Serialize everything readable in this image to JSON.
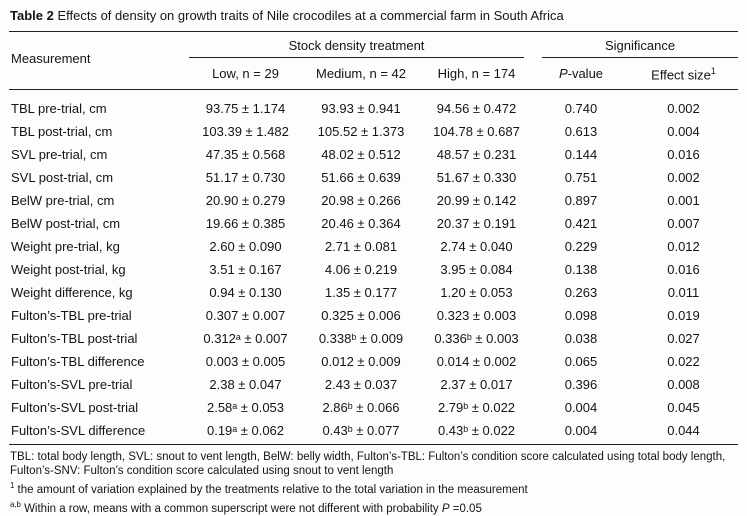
{
  "title": {
    "label": "Table 2",
    "text": " Effects of density on growth traits of Nile crocodiles at a commercial farm in South Africa"
  },
  "table": {
    "headers": {
      "measurement": "Measurement",
      "stock_density_group": "Stock density treatment",
      "significance_group": "Significance",
      "low": "Low, n = 29",
      "medium": "Medium, n = 42",
      "high": "High, n = 174",
      "p_value": {
        "p": "P",
        "rest": "-value"
      },
      "effect_size": {
        "text": "Effect size",
        "sup": "1"
      }
    },
    "rows": [
      {
        "measurement": "TBL pre-trial, cm",
        "low": "93.75 ± 1.174",
        "medium": "93.93 ± 0.941",
        "high": "94.56 ± 0.472",
        "p_value": "0.740",
        "effect_size": "0.002"
      },
      {
        "measurement": "TBL post-trial, cm",
        "low": "103.39 ± 1.482",
        "medium": "105.52 ± 1.373",
        "high": "104.78 ± 0.687",
        "p_value": "0.613",
        "effect_size": "0.004"
      },
      {
        "measurement": "SVL pre-trial, cm",
        "low": "47.35 ± 0.568",
        "medium": "48.02 ± 0.512",
        "high": "48.57 ± 0.231",
        "p_value": "0.144",
        "effect_size": "0.016"
      },
      {
        "measurement": "SVL post-trial, cm",
        "low": "51.17 ± 0.730",
        "medium": "51.66 ± 0.639",
        "high": "51.67 ± 0.330",
        "p_value": "0.751",
        "effect_size": "0.002"
      },
      {
        "measurement": "BelW pre-trial, cm",
        "low": "20.90 ± 0.279",
        "medium": "20.98 ± 0.266",
        "high": "20.99 ± 0.142",
        "p_value": "0.897",
        "effect_size": "0.001"
      },
      {
        "measurement": "BelW post-trial, cm",
        "low": "19.66 ± 0.385",
        "medium": "20.46 ± 0.364",
        "high": "20.37 ± 0.191",
        "p_value": "0.421",
        "effect_size": "0.007"
      },
      {
        "measurement": "Weight pre-trial, kg",
        "low": "2.60 ± 0.090",
        "medium": "2.71 ± 0.081",
        "high": "2.74 ± 0.040",
        "p_value": "0.229",
        "effect_size": "0.012"
      },
      {
        "measurement": "Weight post-trial, kg",
        "low": "3.51 ± 0.167",
        "medium": "4.06 ± 0.219",
        "high": "3.95 ± 0.084",
        "p_value": "0.138",
        "effect_size": "0.016"
      },
      {
        "measurement": "Weight difference, kg",
        "low": "0.94 ± 0.130",
        "medium": "1.35 ± 0.177",
        "high": "1.20 ± 0.053",
        "p_value": "0.263",
        "effect_size": "0.011"
      },
      {
        "measurement": "Fulton’s-TBL pre-trial",
        "low": "0.307 ± 0.007",
        "medium": "0.325 ± 0.006",
        "high": "0.323 ± 0.003",
        "p_value": "0.098",
        "effect_size": "0.019"
      },
      {
        "measurement": "Fulton’s-TBL post-trial",
        "low": "0.312ᵃ ± 0.007",
        "medium": "0.338ᵇ ± 0.009",
        "high": "0.336ᵇ ± 0.003",
        "p_value": "0.038",
        "effect_size": "0.027"
      },
      {
        "measurement": "Fulton’s-TBL difference",
        "low": "0.003 ± 0.005",
        "medium": "0.012 ± 0.009",
        "high": "0.014 ± 0.002",
        "p_value": "0.065",
        "effect_size": "0.022"
      },
      {
        "measurement": "Fulton’s-SVL pre-trial",
        "low": "2.38 ± 0.047",
        "medium": "2.43 ± 0.037",
        "high": "2.37 ± 0.017",
        "p_value": "0.396",
        "effect_size": "0.008"
      },
      {
        "measurement": "Fulton’s-SVL post-trial",
        "low": "2.58ᵃ ± 0.053",
        "medium": "2.86ᵇ ± 0.066",
        "high": "2.79ᵇ ± 0.022",
        "p_value": "0.004",
        "effect_size": "0.045"
      },
      {
        "measurement": "Fulton’s-SVL difference",
        "low": "0.19ᵃ ± 0.062",
        "medium": "0.43ᵇ ± 0.077",
        "high": "0.43ᵇ ± 0.022",
        "p_value": "0.004",
        "effect_size": "0.044"
      }
    ],
    "footnotes": {
      "abbreviations": "TBL: total body length, SVL: snout to vent length, BelW: belly width, Fulton’s-TBL: Fulton’s condition score calculated using total body length, Fulton’s-SNV: Fulton’s condition score calculated using snout to vent length",
      "effect_size_note": {
        "sup": "1",
        "text": " the amount of variation explained by the treatments relative to the total variation in the measurement"
      },
      "superscript_note": {
        "sup": "a,b",
        "text": " Within a row, means with a common superscript were not different with probability ",
        "italic": "P",
        "tail": " =0.05"
      }
    }
  }
}
